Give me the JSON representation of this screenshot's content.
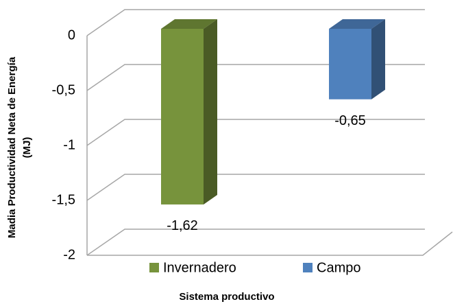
{
  "chart_data": {
    "type": "bar3d",
    "categories": [
      null
    ],
    "series": [
      {
        "name": "Invernadero",
        "color": "#77933c",
        "values": [
          -1.62
        ],
        "value_labels": [
          "-1,62"
        ]
      },
      {
        "name": "Campo",
        "color": "#4f81bd",
        "values": [
          -0.65
        ],
        "value_labels": [
          "-0,65"
        ]
      }
    ],
    "ylim": [
      -2,
      0
    ],
    "yticks": [
      0,
      {
        "value": -0.5,
        "label": "-0,5"
      },
      -1,
      {
        "value": -1.5,
        "label": "-1,5"
      },
      -2
    ],
    "grid": true,
    "y_label": [
      "Madia Productividad Neta de Energía",
      "(MJ)"
    ],
    "x_label": "Sistema productivo",
    "legend": "bottom"
  }
}
